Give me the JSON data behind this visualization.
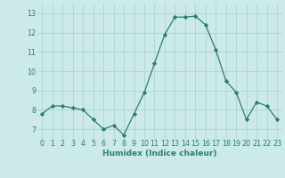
{
  "x": [
    0,
    1,
    2,
    3,
    4,
    5,
    6,
    7,
    8,
    9,
    10,
    11,
    12,
    13,
    14,
    15,
    16,
    17,
    18,
    19,
    20,
    21,
    22,
    23
  ],
  "y": [
    7.8,
    8.2,
    8.2,
    8.1,
    8.0,
    7.5,
    7.0,
    7.2,
    6.7,
    7.8,
    8.9,
    10.4,
    11.9,
    12.8,
    12.8,
    12.85,
    12.4,
    11.1,
    9.5,
    8.9,
    7.5,
    8.4,
    8.2,
    7.5
  ],
  "xlabel": "Humidex (Indice chaleur)",
  "ylim": [
    6.5,
    13.5
  ],
  "xlim": [
    -0.5,
    23.5
  ],
  "yticks": [
    7,
    8,
    9,
    10,
    11,
    12,
    13
  ],
  "xticks": [
    0,
    1,
    2,
    3,
    4,
    5,
    6,
    7,
    8,
    9,
    10,
    11,
    12,
    13,
    14,
    15,
    16,
    17,
    18,
    19,
    20,
    21,
    22,
    23
  ],
  "line_color": "#2d7d6e",
  "marker_color": "#2d7d6e",
  "bg_color": "#cceaea",
  "grid_color": "#aed4d4",
  "axes_bg": "#cceaea",
  "tick_label_color": "#2d7d6e",
  "xlabel_color": "#2d7d6e",
  "tick_fontsize": 5.8,
  "xlabel_fontsize": 6.5
}
